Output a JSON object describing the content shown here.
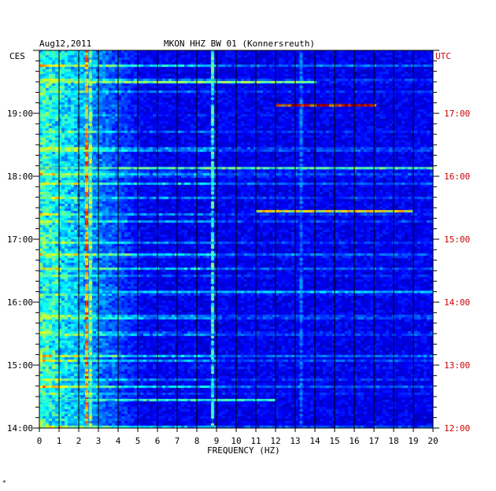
{
  "header": {
    "date": "Aug12,2011",
    "station": "MKON HHZ BW 01 (Konnersreuth)"
  },
  "corner_mark": "*",
  "colors": {
    "background": "#0a1fa8",
    "grid": "#000000",
    "utc_text": "#cc0000",
    "text": "#000000"
  },
  "chart_data": {
    "type": "heatmap",
    "title": "MKON HHZ BW 01 (Konnersreuth)",
    "date": "Aug12,2011",
    "xlabel": "FREQUENCY (HZ)",
    "xlim": [
      0,
      20
    ],
    "x_ticks": [
      "0",
      "1",
      "2",
      "3",
      "4",
      "5",
      "6",
      "7",
      "8",
      "9",
      "10",
      "11",
      "12",
      "13",
      "14",
      "15",
      "16",
      "17",
      "18",
      "19",
      "20"
    ],
    "left_axis_label": "CES",
    "right_axis_label": "UTC",
    "left_time_ticks": [
      "19:00",
      "18:00",
      "17:00",
      "16:00",
      "15:00",
      "14:00"
    ],
    "right_time_ticks": [
      "17:00",
      "16:00",
      "15:00",
      "14:00",
      "13:00",
      "12:00"
    ],
    "time_range_local": [
      "14:00",
      "20:00"
    ],
    "persistent_lines_hz": [
      {
        "freq": 2.4,
        "intensity": 0.75
      },
      {
        "freq": 2.6,
        "intensity": 0.55
      },
      {
        "freq": 8.8,
        "intensity": 0.45
      },
      {
        "freq": 13.3,
        "intensity": 0.25
      }
    ],
    "broadband_events": [
      {
        "time": "19:08",
        "from_hz": 12,
        "to_hz": 17,
        "intensity": 1.0
      },
      {
        "time": "17:27",
        "from_hz": 11,
        "to_hz": 19,
        "intensity": 0.7
      },
      {
        "time": "18:08",
        "from_hz": 0,
        "to_hz": 20,
        "intensity": 0.5
      },
      {
        "time": "19:30",
        "from_hz": 0,
        "to_hz": 14,
        "intensity": 0.55
      },
      {
        "time": "16:10",
        "from_hz": 0,
        "to_hz": 20,
        "intensity": 0.35
      },
      {
        "time": "14:27",
        "from_hz": 0,
        "to_hz": 12,
        "intensity": 0.45
      }
    ]
  }
}
